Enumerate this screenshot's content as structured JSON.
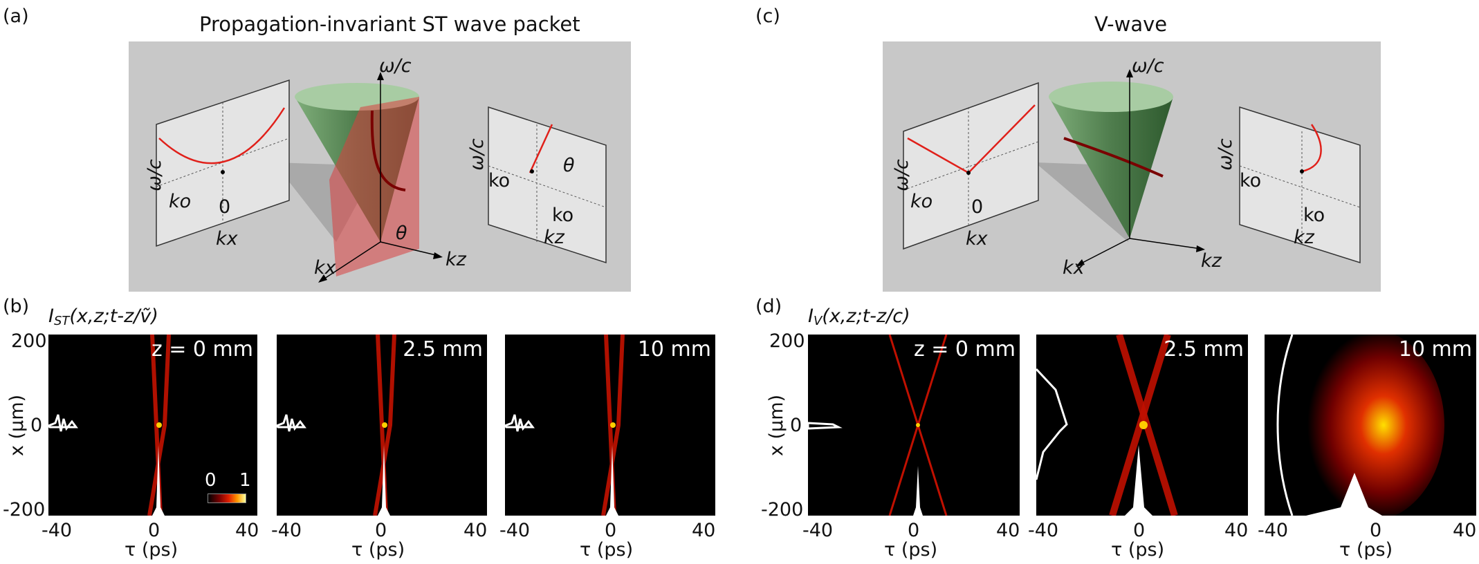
{
  "panels": {
    "a": {
      "letter": "(a)",
      "title": "Propagation-invariant ST wave packet",
      "cone_axis_label": "ω/c",
      "kx_axis": "kx",
      "kz_axis": "kz",
      "angle_label": "θ",
      "left_inset": {
        "ylabel": "ω/c",
        "k0_label": "ko",
        "zero_label": "0",
        "xlabel": "kx"
      },
      "right_inset": {
        "ylabel": "ω/c",
        "k0_label": "ko",
        "k0_bottom": "ko",
        "xlabel": "kz",
        "angle_label": "θ"
      }
    },
    "c": {
      "letter": "(c)",
      "title": "V-wave",
      "cone_axis_label": "ω/c",
      "kx_axis": "kx",
      "kz_axis": "kz",
      "left_inset": {
        "ylabel": "ω/c",
        "k0_label": "ko",
        "zero_label": "0",
        "xlabel": "kx"
      },
      "right_inset": {
        "ylabel": "ω/c",
        "k0_label": "ko",
        "k0_bottom": "ko",
        "xlabel": "kz"
      }
    },
    "b": {
      "letter": "(b)",
      "intensity_label": "I",
      "intensity_sub": "ST",
      "intensity_args": "(x,z;t-z/ṽ)",
      "ylabel": "x (μm)",
      "yticks": [
        "200",
        "0",
        "-200"
      ],
      "xlabel": "τ (ps)",
      "xticks": [
        "-40",
        "0",
        "40"
      ],
      "colorbar": {
        "min": "0",
        "max": "1"
      },
      "maps": [
        {
          "z_label": "z = 0 mm"
        },
        {
          "z_label": "2.5 mm"
        },
        {
          "z_label": "10 mm"
        }
      ]
    },
    "d": {
      "letter": "(d)",
      "intensity_label": "I",
      "intensity_sub": "V",
      "intensity_args": "(x,z;t-z/c)",
      "ylabel": "x (μm)",
      "yticks": [
        "200",
        "0",
        "-200"
      ],
      "xlabel": "τ (ps)",
      "xticks": [
        "-40",
        "0",
        "40"
      ],
      "maps": [
        {
          "z_label": "z = 0 mm"
        },
        {
          "z_label": "2.5 mm"
        },
        {
          "z_label": "10 mm"
        }
      ]
    }
  },
  "colors": {
    "cone": "#6f9a6a",
    "line": "#e0201a",
    "plane": "#d94040",
    "background_box": "#c8c8c8"
  }
}
